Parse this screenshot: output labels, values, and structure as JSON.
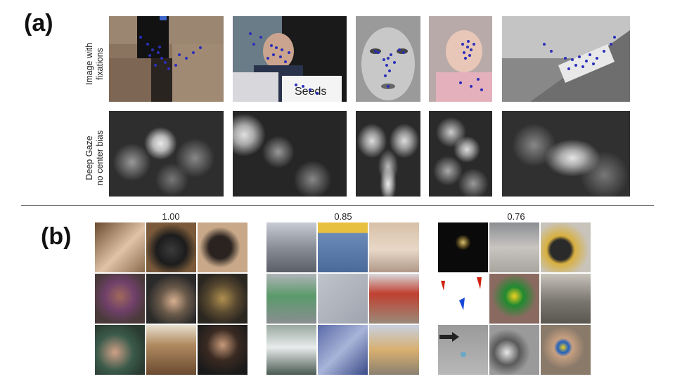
{
  "panel_a": {
    "label": "(a)",
    "row1_label": [
      "Image with",
      "fixations"
    ],
    "row2_label": [
      "Deep Gaze",
      "no center bias"
    ]
  },
  "panel_b": {
    "label": "(b)",
    "groups": [
      {
        "score": "1.00"
      },
      {
        "score": "0.85"
      },
      {
        "score": "0.76"
      }
    ]
  },
  "colors": {
    "fixation": "#2b2fb8"
  }
}
